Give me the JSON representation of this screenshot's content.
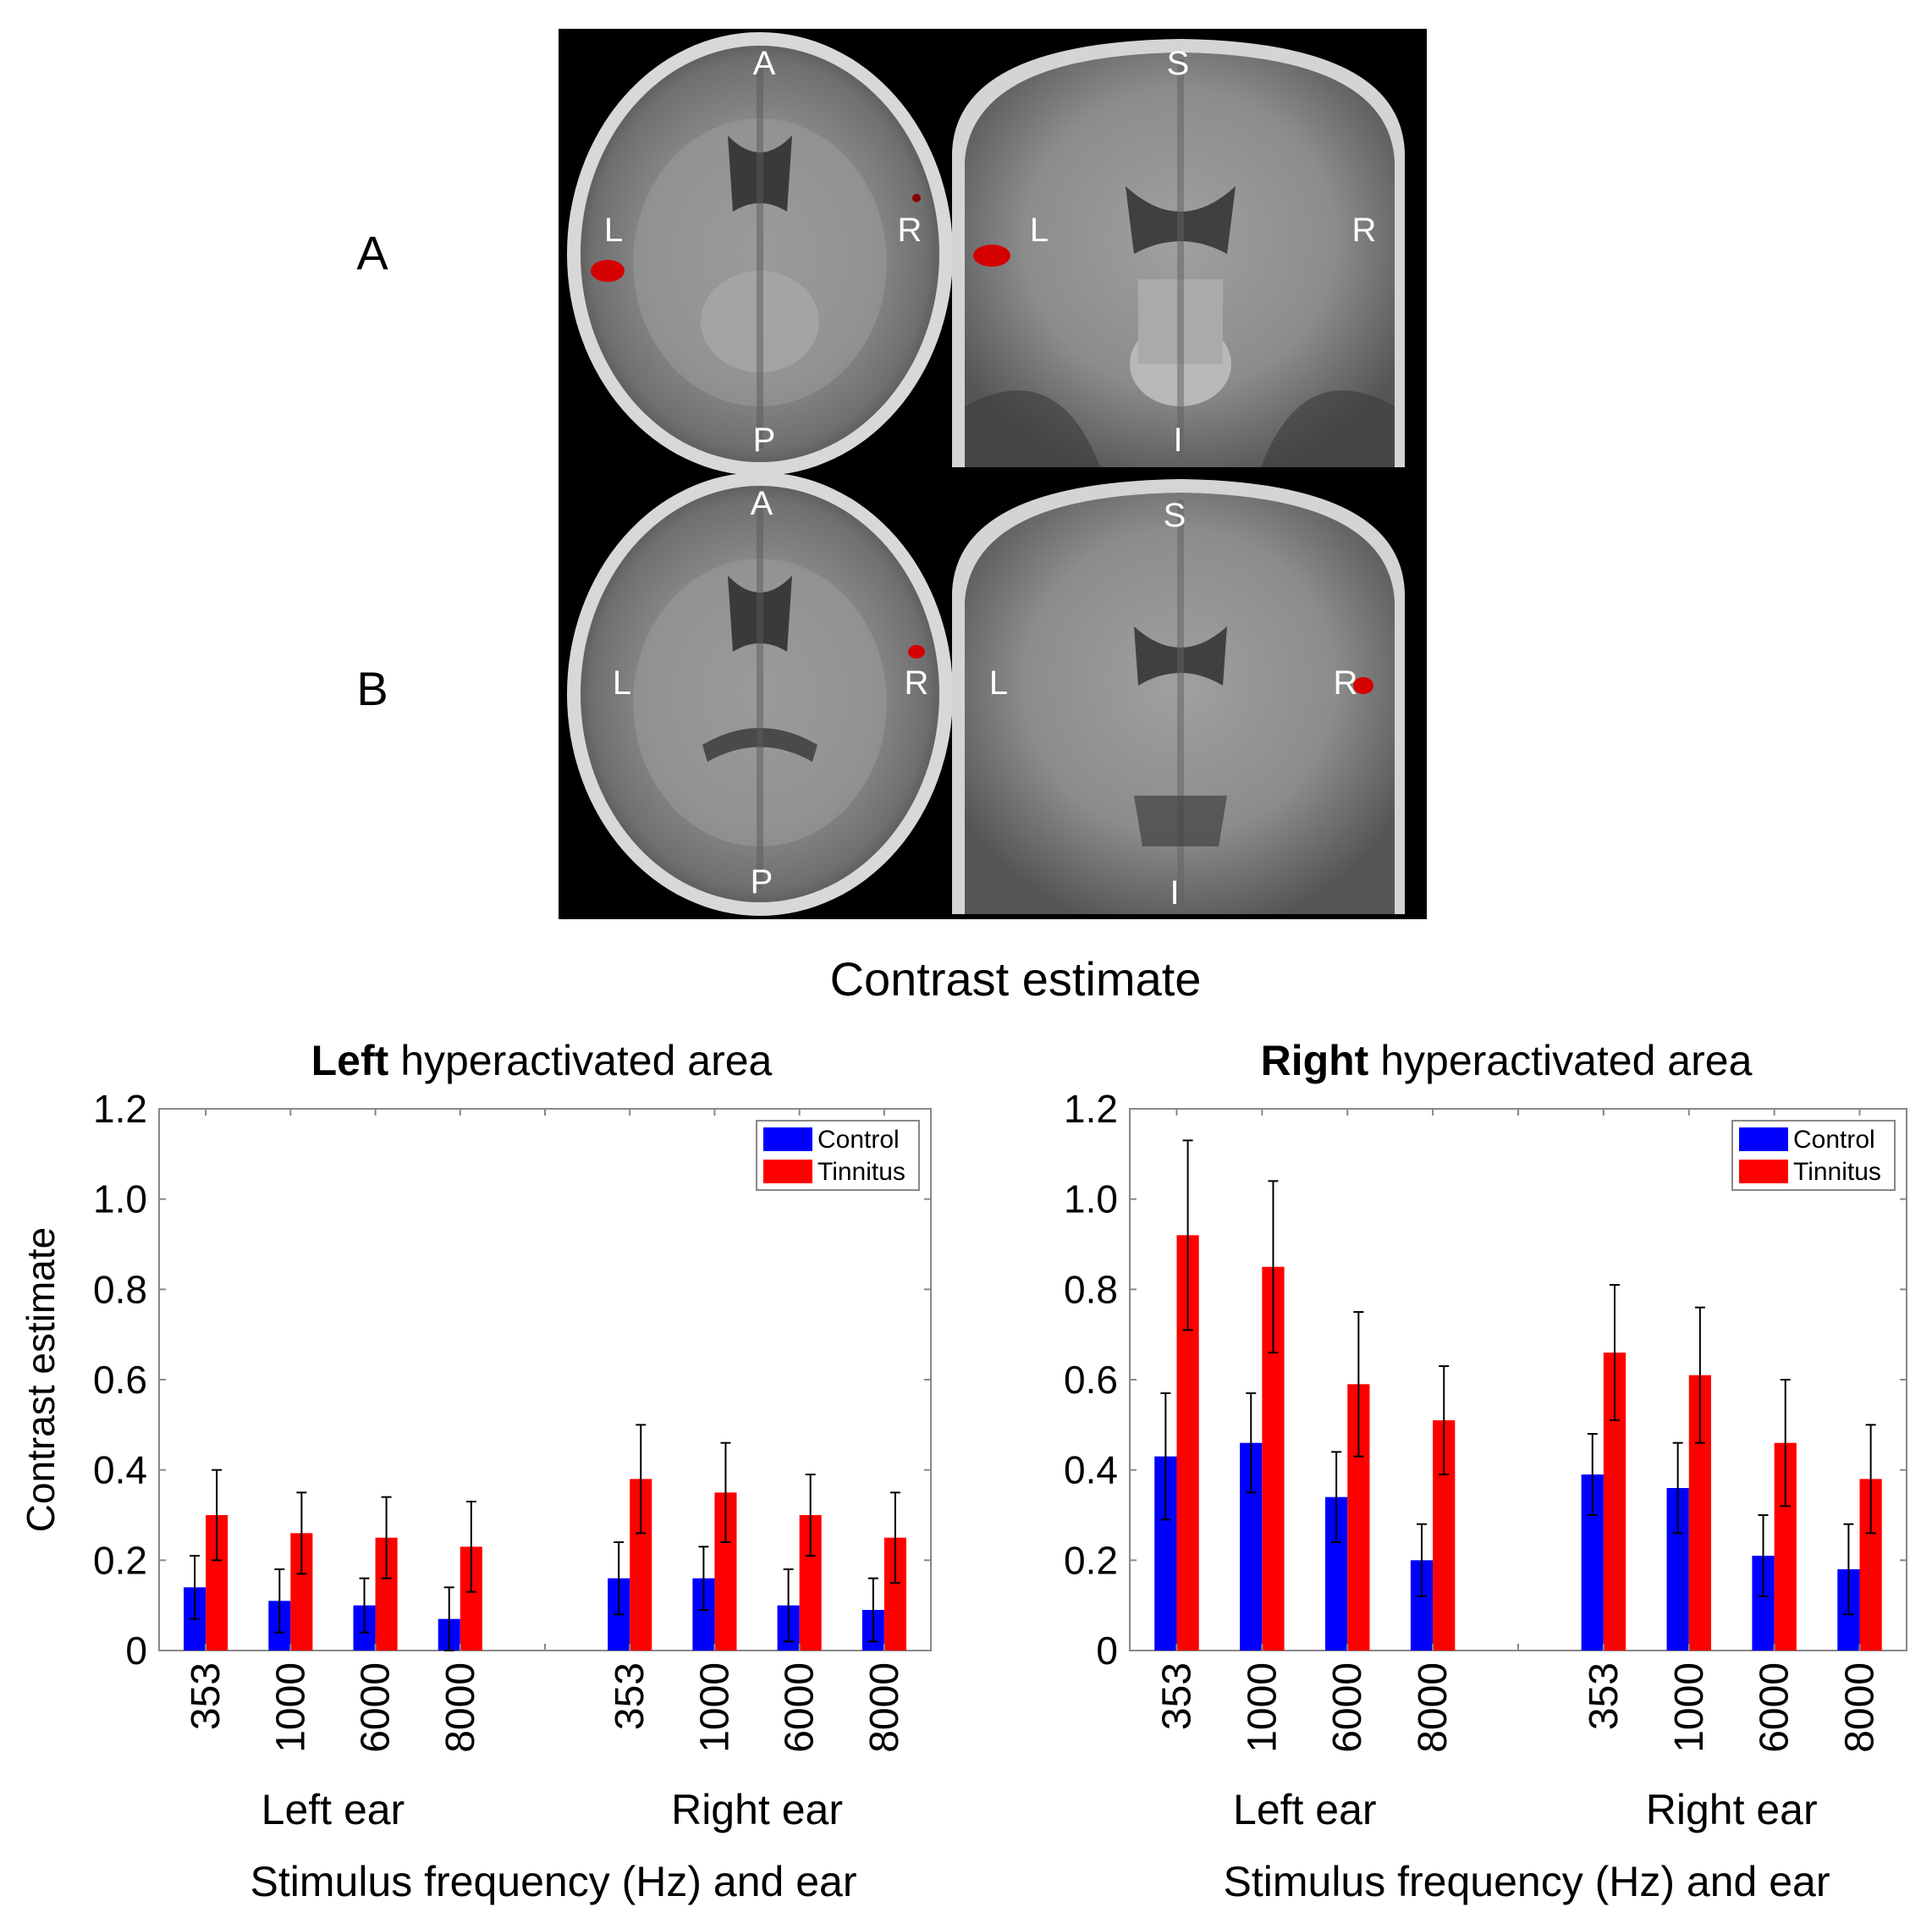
{
  "colors": {
    "control": "#0000ff",
    "tinnitus": "#ff0000",
    "brain_background": "#000000",
    "activation": "#d40000",
    "axis": "#888888"
  },
  "brain_panel": {
    "row_labels": [
      "A",
      "B"
    ],
    "axial_labels": {
      "anterior": "A",
      "posterior": "P",
      "left": "L",
      "right": "R"
    },
    "coronal_labels": {
      "superior": "S",
      "inferior": "I",
      "left": "L",
      "right": "R"
    }
  },
  "figure_title": "Contrast estimate",
  "chart_data": [
    {
      "type": "bar",
      "title_bold": "Left",
      "title_rest": " hyperactivated area",
      "ylabel": "Contrast estimate",
      "xlabel": "Stimulus frequency (Hz) and ear",
      "ylim": [
        0,
        1.2
      ],
      "yticks": [
        "1.2",
        "1.0",
        "0.8",
        "0.6",
        "0.4",
        "0.2",
        "0"
      ],
      "groups": [
        "Left ear",
        "Right ear"
      ],
      "categories": [
        "353",
        "1000",
        "6000",
        "8000"
      ],
      "legend_position": "top-right",
      "series": [
        {
          "name": "Control",
          "values": [
            [
              0.14,
              0.11,
              0.1,
              0.07
            ],
            [
              0.16,
              0.16,
              0.1,
              0.09
            ]
          ],
          "errors": [
            [
              0.07,
              0.07,
              0.06,
              0.07
            ],
            [
              0.08,
              0.07,
              0.08,
              0.07
            ]
          ]
        },
        {
          "name": "Tinnitus",
          "values": [
            [
              0.3,
              0.26,
              0.25,
              0.23
            ],
            [
              0.38,
              0.35,
              0.3,
              0.25
            ]
          ],
          "errors": [
            [
              0.1,
              0.09,
              0.09,
              0.1
            ],
            [
              0.12,
              0.11,
              0.09,
              0.1
            ]
          ]
        }
      ]
    },
    {
      "type": "bar",
      "title_bold": "Right",
      "title_rest": " hyperactivated area",
      "ylabel": "",
      "xlabel": "Stimulus frequency (Hz) and ear",
      "ylim": [
        0,
        1.2
      ],
      "yticks": [
        "1.2",
        "1.0",
        "0.8",
        "0.6",
        "0.4",
        "0.2",
        "0"
      ],
      "groups": [
        "Left ear",
        "Right ear"
      ],
      "categories": [
        "353",
        "1000",
        "6000",
        "8000"
      ],
      "legend_position": "top-right",
      "series": [
        {
          "name": "Control",
          "values": [
            [
              0.43,
              0.46,
              0.34,
              0.2
            ],
            [
              0.39,
              0.36,
              0.21,
              0.18
            ]
          ],
          "errors": [
            [
              0.14,
              0.11,
              0.1,
              0.08
            ],
            [
              0.09,
              0.1,
              0.09,
              0.1
            ]
          ]
        },
        {
          "name": "Tinnitus",
          "values": [
            [
              0.92,
              0.85,
              0.59,
              0.51
            ],
            [
              0.66,
              0.61,
              0.46,
              0.38
            ]
          ],
          "errors": [
            [
              0.21,
              0.19,
              0.16,
              0.12
            ],
            [
              0.15,
              0.15,
              0.14,
              0.12
            ]
          ]
        }
      ]
    }
  ]
}
